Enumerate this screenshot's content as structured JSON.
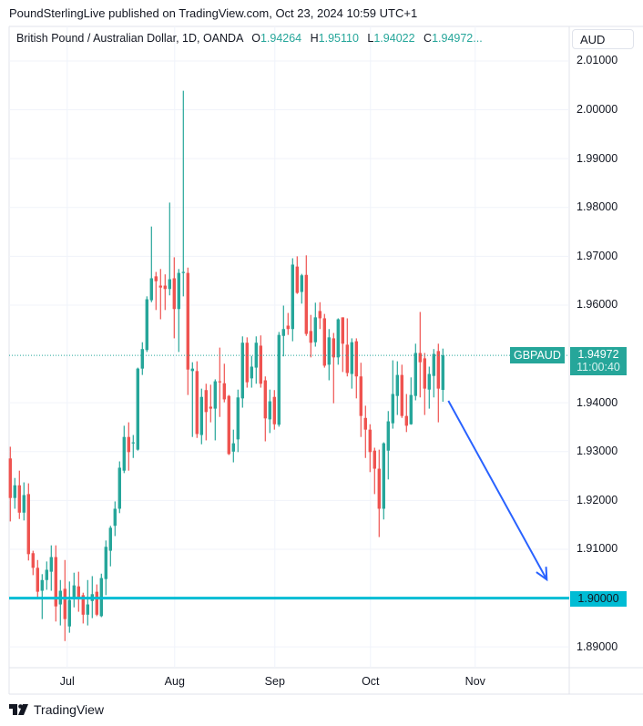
{
  "published": "PoundSterlingLive published on TradingView.com, Oct 23, 2024 10:59 UTC+1",
  "legend": {
    "title": "British Pound / Australian Dollar, 1D, OANDA",
    "o_label": "O",
    "o_value": "1.94264",
    "h_label": "H",
    "h_value": "1.95110",
    "l_label": "L",
    "l_value": "1.94022",
    "c_label": "C",
    "c_value": "1.94972..."
  },
  "currency_button": "AUD",
  "footer_brand": "TradingView",
  "colors": {
    "up": "#26a69a",
    "down": "#ef5350",
    "hline": "#00bcd4",
    "arrow": "#2962ff",
    "grid": "#f0f3fa"
  },
  "chart_data": {
    "type": "candlestick",
    "symbol": "GBPAUD",
    "last_price": "1.94972",
    "countdown": "11:00:40",
    "horizontal_line": {
      "price": 1.9,
      "label": "1.90000"
    },
    "ylim": [
      1.8855,
      2.0135
    ],
    "y_ticks": [
      {
        "v": 2.01,
        "label": "2.01000"
      },
      {
        "v": 2.0,
        "label": "2.00000"
      },
      {
        "v": 1.99,
        "label": "1.99000"
      },
      {
        "v": 1.98,
        "label": "1.98000"
      },
      {
        "v": 1.97,
        "label": "1.97000"
      },
      {
        "v": 1.96,
        "label": "1.96000"
      },
      {
        "v": 1.94,
        "label": "1.94000"
      },
      {
        "v": 1.93,
        "label": "1.93000"
      },
      {
        "v": 1.92,
        "label": "1.92000"
      },
      {
        "v": 1.91,
        "label": "1.91000"
      },
      {
        "v": 1.89,
        "label": "1.89000"
      }
    ],
    "x_ticks": [
      {
        "bar": 12.5,
        "label": "Jul"
      },
      {
        "bar": 36.1,
        "label": "Aug"
      },
      {
        "bar": 58.1,
        "label": "Sep"
      },
      {
        "bar": 79.1,
        "label": "Oct"
      },
      {
        "bar": 102.1,
        "label": "Nov"
      }
    ],
    "total_slots": 123,
    "ohlc": [
      [
        1.9286,
        1.931,
        1.9157,
        1.9205
      ],
      [
        1.9205,
        1.9246,
        1.9183,
        1.9231
      ],
      [
        1.9231,
        1.9261,
        1.9162,
        1.9175
      ],
      [
        1.9175,
        1.9237,
        1.9159,
        1.9211
      ],
      [
        1.9213,
        1.9235,
        1.9077,
        1.909
      ],
      [
        1.9092,
        1.9097,
        1.9047,
        1.9062
      ],
      [
        1.9062,
        1.9078,
        1.9002,
        1.9013
      ],
      [
        1.9015,
        1.9049,
        1.8957,
        1.9037
      ],
      [
        1.9037,
        1.9075,
        1.9017,
        1.9058
      ],
      [
        1.9054,
        1.9108,
        1.9015,
        1.9084
      ],
      [
        1.9084,
        1.9108,
        1.8952,
        1.8983
      ],
      [
        1.8987,
        1.9037,
        1.8944,
        1.9015
      ],
      [
        1.9019,
        1.9078,
        1.8912,
        1.8957
      ],
      [
        1.8942,
        1.9034,
        1.8929,
        1.8996
      ],
      [
        1.8998,
        1.9052,
        1.8981,
        1.9026
      ],
      [
        1.9024,
        1.9054,
        1.8972,
        1.9002
      ],
      [
        1.9006,
        1.9011,
        1.8948,
        1.8966
      ],
      [
        1.8966,
        1.9037,
        1.8944,
        1.8987
      ],
      [
        1.8994,
        1.9045,
        1.8959,
        1.9008
      ],
      [
        1.9013,
        1.9028,
        1.8963,
        1.8966
      ],
      [
        1.8963,
        1.905,
        1.8961,
        1.9041
      ],
      [
        1.9039,
        1.9118,
        1.9006,
        1.9105
      ],
      [
        1.9097,
        1.9148,
        1.9065,
        1.9144
      ],
      [
        1.9148,
        1.9198,
        1.9127,
        1.9183
      ],
      [
        1.9183,
        1.928,
        1.9174,
        1.9267
      ],
      [
        1.9261,
        1.9353,
        1.9256,
        1.933
      ],
      [
        1.933,
        1.936,
        1.9261,
        1.9299
      ],
      [
        1.9317,
        1.9334,
        1.9287,
        1.9319
      ],
      [
        1.9304,
        1.9472,
        1.9302,
        1.947
      ],
      [
        1.947,
        1.9524,
        1.9457,
        1.951
      ],
      [
        1.9508,
        1.9618,
        1.9504,
        1.9612
      ],
      [
        1.961,
        1.9761,
        1.9606,
        1.9655
      ],
      [
        1.9659,
        1.9668,
        1.959,
        1.9649
      ],
      [
        1.964,
        1.9674,
        1.9571,
        1.9636
      ],
      [
        1.964,
        1.9663,
        1.959,
        1.9633
      ],
      [
        1.9633,
        1.981,
        1.962,
        1.9653
      ],
      [
        1.9655,
        1.9698,
        1.9532,
        1.9592
      ],
      [
        1.9592,
        1.9674,
        1.9504,
        1.9666
      ],
      [
        1.9666,
        2.0039,
        1.9618,
        1.9668
      ],
      [
        1.9666,
        1.9677,
        1.9416,
        1.9468
      ],
      [
        1.9465,
        1.9483,
        1.933,
        1.947
      ],
      [
        1.9465,
        1.9485,
        1.9328,
        1.9336
      ],
      [
        1.9334,
        1.9429,
        1.9315,
        1.9412
      ],
      [
        1.9426,
        1.9439,
        1.9323,
        1.9381
      ],
      [
        1.9392,
        1.9437,
        1.936,
        1.9388
      ],
      [
        1.9388,
        1.9448,
        1.9323,
        1.9444
      ],
      [
        1.9444,
        1.9513,
        1.9371,
        1.9442
      ],
      [
        1.944,
        1.948,
        1.9401,
        1.9407
      ],
      [
        1.9414,
        1.9416,
        1.9293,
        1.9295
      ],
      [
        1.93,
        1.9345,
        1.9278,
        1.9317
      ],
      [
        1.9325,
        1.9427,
        1.9299,
        1.9411
      ],
      [
        1.9409,
        1.9536,
        1.939,
        1.9523
      ],
      [
        1.9523,
        1.9534,
        1.9431,
        1.9442
      ],
      [
        1.945,
        1.9496,
        1.9431,
        1.9474
      ],
      [
        1.9472,
        1.9536,
        1.9439,
        1.9523
      ],
      [
        1.9517,
        1.9538,
        1.9431,
        1.9439
      ],
      [
        1.9446,
        1.9454,
        1.9321,
        1.9368
      ],
      [
        1.9366,
        1.9427,
        1.9338,
        1.9403
      ],
      [
        1.9412,
        1.9426,
        1.9345,
        1.9356
      ],
      [
        1.9355,
        1.9545,
        1.9351,
        1.9539
      ],
      [
        1.9537,
        1.9599,
        1.9495,
        1.9551
      ],
      [
        1.9558,
        1.9584,
        1.9539,
        1.9551
      ],
      [
        1.9551,
        1.9696,
        1.9526,
        1.9683
      ],
      [
        1.9679,
        1.97,
        1.9623,
        1.9625
      ],
      [
        1.9627,
        1.9664,
        1.9603,
        1.9661
      ],
      [
        1.9662,
        1.9702,
        1.9537,
        1.9541
      ],
      [
        1.9547,
        1.958,
        1.9493,
        1.9523
      ],
      [
        1.9524,
        1.9605,
        1.9515,
        1.9575
      ],
      [
        1.9588,
        1.9606,
        1.9551,
        1.9573
      ],
      [
        1.9573,
        1.9582,
        1.9472,
        1.9476
      ],
      [
        1.9478,
        1.9551,
        1.9446,
        1.9534
      ],
      [
        1.9532,
        1.9543,
        1.9399,
        1.9493
      ],
      [
        1.9493,
        1.9573,
        1.9478,
        1.9571
      ],
      [
        1.9575,
        1.9575,
        1.9463,
        1.9521
      ],
      [
        1.9519,
        1.9573,
        1.9454,
        1.9461
      ],
      [
        1.9459,
        1.9532,
        1.9429,
        1.9524
      ],
      [
        1.9526,
        1.9532,
        1.9409,
        1.9454
      ],
      [
        1.9454,
        1.9482,
        1.933,
        1.9373
      ],
      [
        1.9369,
        1.9394,
        1.9287,
        1.9345
      ],
      [
        1.9345,
        1.9356,
        1.9258,
        1.9299
      ],
      [
        1.9302,
        1.9308,
        1.9213,
        1.9265
      ],
      [
        1.9265,
        1.9304,
        1.9125,
        1.9183
      ],
      [
        1.9183,
        1.9319,
        1.9161,
        1.9317
      ],
      [
        1.9302,
        1.9383,
        1.9243,
        1.9362
      ],
      [
        1.9358,
        1.9487,
        1.9347,
        1.9418
      ],
      [
        1.9414,
        1.9485,
        1.9375,
        1.9457
      ],
      [
        1.9457,
        1.9478,
        1.9369,
        1.9373
      ],
      [
        1.9373,
        1.9418,
        1.934,
        1.9353
      ],
      [
        1.9356,
        1.9452,
        1.9355,
        1.9416
      ],
      [
        1.9414,
        1.9521,
        1.9405,
        1.9502
      ],
      [
        1.9502,
        1.9586,
        1.9411,
        1.9483
      ],
      [
        1.9491,
        1.9502,
        1.9375,
        1.9429
      ],
      [
        1.9427,
        1.9474,
        1.9388,
        1.9459
      ],
      [
        1.9455,
        1.951,
        1.9411,
        1.95
      ],
      [
        1.9506,
        1.9521,
        1.936,
        1.9429
      ],
      [
        1.94264,
        1.9511,
        1.94022,
        1.94972
      ]
    ],
    "drawing_arrow": {
      "from": {
        "bar": 96.2,
        "price": 1.9404
      },
      "to": {
        "bar": 117.8,
        "price": 1.9038
      }
    }
  }
}
